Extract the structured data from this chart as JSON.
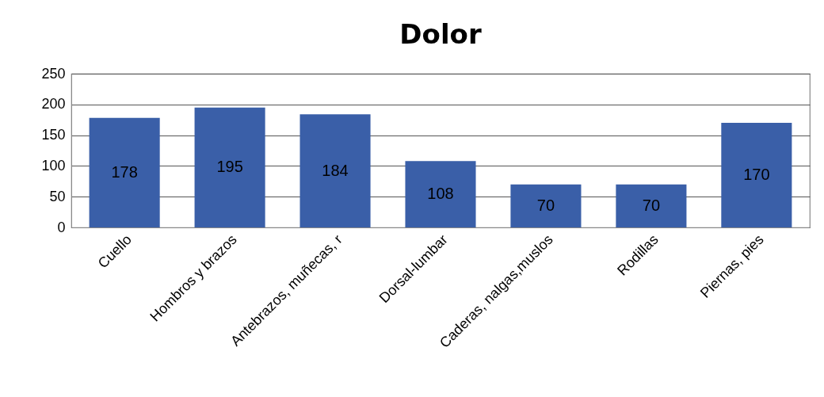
{
  "chart_data": {
    "type": "bar",
    "title": "Dolor",
    "categories": [
      "Cuello",
      "Hombros y brazos",
      "Antebrazos, muñecas, r",
      "Dorsal-lumbar",
      "Caderas, nalgas,muslos",
      "Rodillas",
      "Piernas, pies"
    ],
    "values": [
      178,
      195,
      184,
      108,
      70,
      70,
      170
    ],
    "color": "#3a5fa8",
    "ylim": [
      0,
      250
    ],
    "yticks": [
      0,
      50,
      100,
      150,
      200,
      250
    ],
    "grid": "y",
    "data_labels": true
  }
}
